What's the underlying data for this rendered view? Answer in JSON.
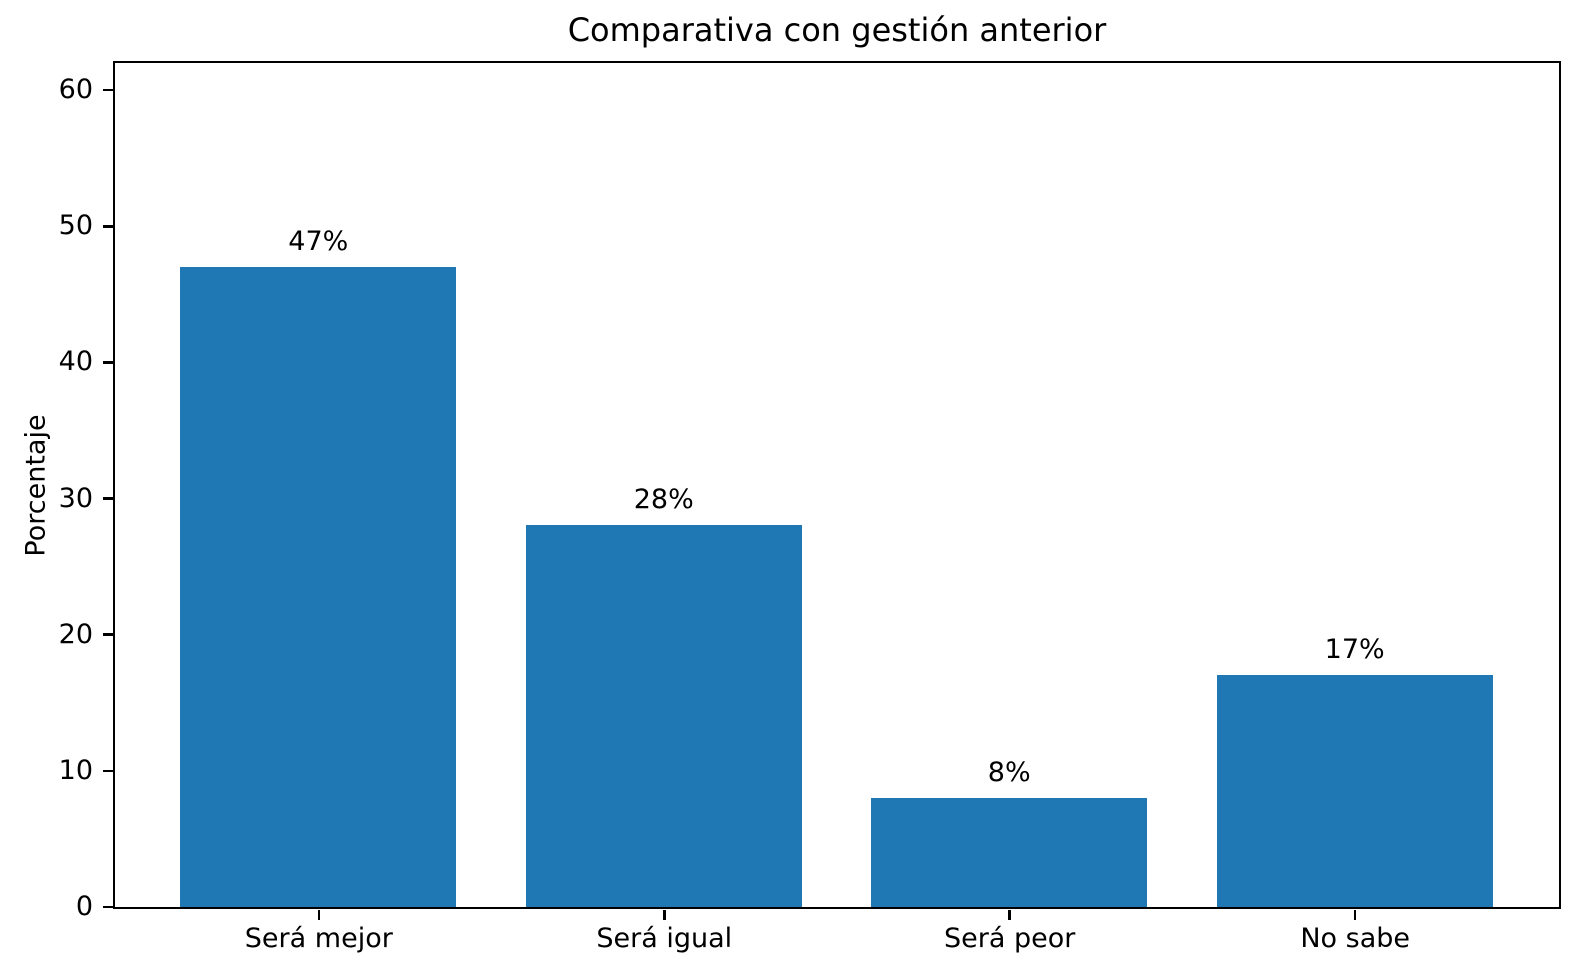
{
  "chart_data": {
    "type": "bar",
    "title": "Comparativa con gestión anterior",
    "xlabel": "",
    "ylabel": "Porcentaje",
    "categories": [
      "Será mejor",
      "Será igual",
      "Será peor",
      "No sabe"
    ],
    "values": [
      47,
      28,
      8,
      17
    ],
    "value_labels": [
      "47%",
      "28%",
      "8%",
      "17%"
    ],
    "x_positions": [
      0,
      1,
      2,
      3
    ],
    "yticks": [
      0,
      10,
      20,
      30,
      40,
      50,
      60
    ],
    "ylim": [
      0,
      62
    ],
    "xlim": [
      -0.59,
      3.59
    ],
    "bar_width_fraction": 0.8,
    "bar_color": "#1f77b4",
    "axis_color": "#000000",
    "background_color": "#ffffff",
    "grid": false,
    "legend": null
  }
}
